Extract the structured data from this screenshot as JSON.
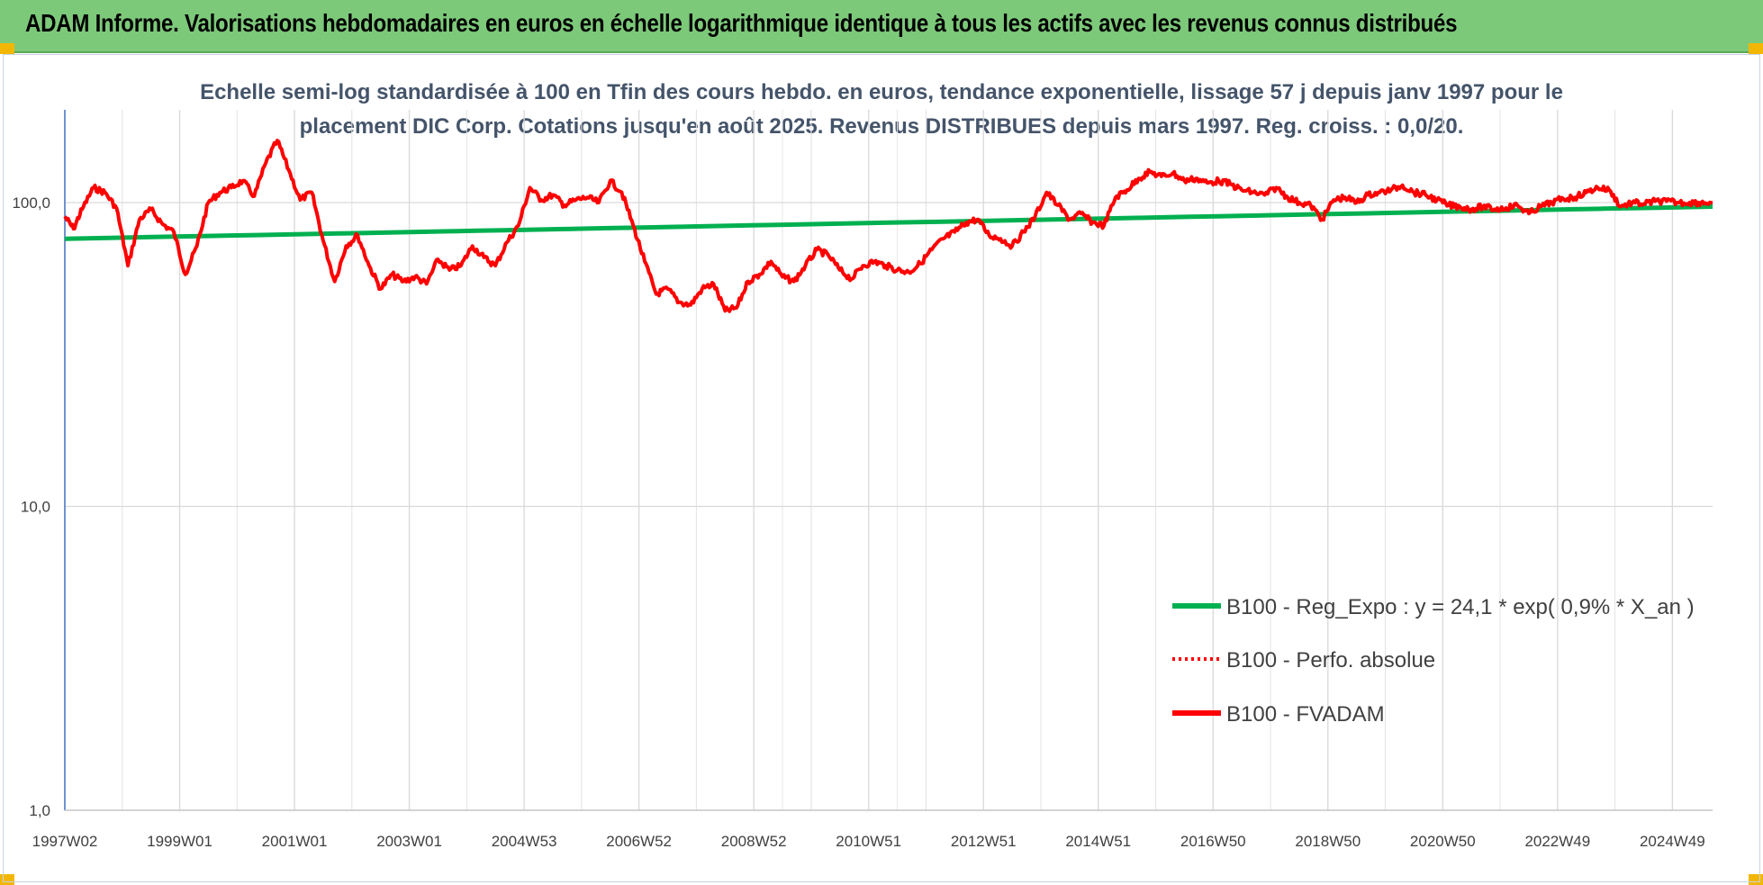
{
  "banner": {
    "title": "ADAM Informe. Valorisations hebdomadaires en euros en échelle logarithmique identique à tous les actifs avec les revenus connus distribués",
    "background": "#7dc97a"
  },
  "chart_data": {
    "type": "line",
    "title_lines": [
      "Echelle semi-log standardisée à 100 en Tfin des cours hebdo. en euros, tendance exponentielle, lissage 57 j depuis janv 1997 pour le",
      "placement DIC Corp. Cotations jusqu'en août 2025. Revenus DISTRIBUES depuis mars 1997. Reg. croiss. : 0,0/20."
    ],
    "y_scale": "log",
    "ylim": [
      1,
      200
    ],
    "y_ticks": [
      {
        "value": 1,
        "label": "1,0"
      },
      {
        "value": 10,
        "label": "10,0"
      },
      {
        "value": 100,
        "label": "100,0"
      }
    ],
    "x_range": [
      1997.0,
      2025.7
    ],
    "x_ticks": [
      {
        "x": 1997.0,
        "label": "1997W02"
      },
      {
        "x": 1999.0,
        "label": "1999W01"
      },
      {
        "x": 2001.0,
        "label": "2001W01"
      },
      {
        "x": 2003.0,
        "label": "2003W01"
      },
      {
        "x": 2005.0,
        "label": "2004W53"
      },
      {
        "x": 2007.0,
        "label": "2006W52"
      },
      {
        "x": 2009.0,
        "label": "2008W52"
      },
      {
        "x": 2011.0,
        "label": "2010W51"
      },
      {
        "x": 2013.0,
        "label": "2012W51"
      },
      {
        "x": 2015.0,
        "label": "2014W51"
      },
      {
        "x": 2017.0,
        "label": "2016W50"
      },
      {
        "x": 2019.0,
        "label": "2018W50"
      },
      {
        "x": 2021.0,
        "label": "2020W50"
      },
      {
        "x": 2023.0,
        "label": "2022W49"
      },
      {
        "x": 2025.0,
        "label": "2024W49"
      }
    ],
    "grid": "vertical",
    "legend_position": "bottom-right",
    "series": [
      {
        "name": "B100 - Reg_Expo : y = 24,1 * exp( 0,9% *  X_an )",
        "color": "#00b050",
        "style": "solid",
        "x": [
          1997.0,
          2025.7
        ],
        "y": [
          76,
          97
        ]
      },
      {
        "name": "B100 - Perfo. absolue",
        "color": "#ff0000",
        "style": "dotted",
        "x": [],
        "y": []
      },
      {
        "name": "B100 - FVADAM",
        "color": "#ff0000",
        "style": "solid",
        "x": [
          1997.0,
          1997.15,
          1997.3,
          1997.5,
          1997.7,
          1997.9,
          1998.1,
          1998.3,
          1998.5,
          1998.7,
          1998.9,
          1999.1,
          1999.3,
          1999.5,
          1999.7,
          1999.9,
          2000.1,
          2000.3,
          2000.5,
          2000.7,
          2000.9,
          2001.1,
          2001.3,
          2001.5,
          2001.7,
          2001.9,
          2002.1,
          2002.3,
          2002.5,
          2002.7,
          2002.9,
          2003.1,
          2003.3,
          2003.5,
          2003.7,
          2003.9,
          2004.1,
          2004.3,
          2004.5,
          2004.7,
          2004.9,
          2005.1,
          2005.3,
          2005.5,
          2005.7,
          2005.9,
          2006.1,
          2006.3,
          2006.5,
          2006.7,
          2006.9,
          2007.1,
          2007.3,
          2007.5,
          2007.7,
          2007.9,
          2008.1,
          2008.3,
          2008.5,
          2008.7,
          2008.9,
          2009.1,
          2009.3,
          2009.5,
          2009.7,
          2009.9,
          2010.1,
          2010.3,
          2010.5,
          2010.7,
          2010.9,
          2011.1,
          2011.3,
          2011.5,
          2011.7,
          2011.9,
          2012.1,
          2012.3,
          2012.5,
          2012.7,
          2012.9,
          2013.1,
          2013.3,
          2013.5,
          2013.7,
          2013.9,
          2014.1,
          2014.3,
          2014.5,
          2014.7,
          2014.9,
          2015.1,
          2015.3,
          2015.5,
          2015.7,
          2015.9,
          2016.1,
          2016.3,
          2016.5,
          2016.7,
          2016.9,
          2017.1,
          2017.3,
          2017.5,
          2017.7,
          2017.9,
          2018.1,
          2018.3,
          2018.5,
          2018.7,
          2018.9,
          2019.1,
          2019.3,
          2019.5,
          2019.7,
          2019.9,
          2020.1,
          2020.3,
          2020.5,
          2020.7,
          2020.9,
          2021.1,
          2021.3,
          2021.5,
          2021.7,
          2021.9,
          2022.1,
          2022.3,
          2022.5,
          2022.7,
          2022.9,
          2023.1,
          2023.3,
          2023.5,
          2023.7,
          2023.9,
          2024.1,
          2024.3,
          2024.5,
          2024.7,
          2024.9,
          2025.1,
          2025.3,
          2025.5,
          2025.7
        ],
        "y": [
          90,
          82,
          95,
          112,
          108,
          96,
          62,
          88,
          95,
          85,
          80,
          58,
          72,
          100,
          108,
          112,
          118,
          105,
          135,
          160,
          128,
          102,
          108,
          75,
          55,
          72,
          78,
          62,
          52,
          58,
          55,
          57,
          54,
          65,
          60,
          62,
          72,
          66,
          62,
          74,
          84,
          112,
          102,
          106,
          98,
          102,
          104,
          100,
          118,
          108,
          84,
          64,
          50,
          52,
          47,
          46,
          52,
          54,
          44,
          45,
          55,
          58,
          64,
          57,
          55,
          62,
          70,
          67,
          60,
          56,
          62,
          64,
          62,
          60,
          59,
          63,
          70,
          76,
          80,
          86,
          88,
          78,
          76,
          72,
          80,
          90,
          108,
          98,
          88,
          92,
          86,
          84,
          104,
          110,
          120,
          126,
          122,
          125,
          118,
          120,
          116,
          118,
          115,
          110,
          108,
          106,
          112,
          104,
          100,
          98,
          88,
          102,
          104,
          100,
          106,
          108,
          110,
          114,
          108,
          106,
          102,
          98,
          97,
          95,
          97,
          95,
          96,
          98,
          92,
          97,
          100,
          103,
          104,
          108,
          112,
          110,
          97,
          100,
          99,
          101,
          101,
          100,
          100,
          100,
          100
        ],
        "y_fix_note": ""
      }
    ]
  }
}
